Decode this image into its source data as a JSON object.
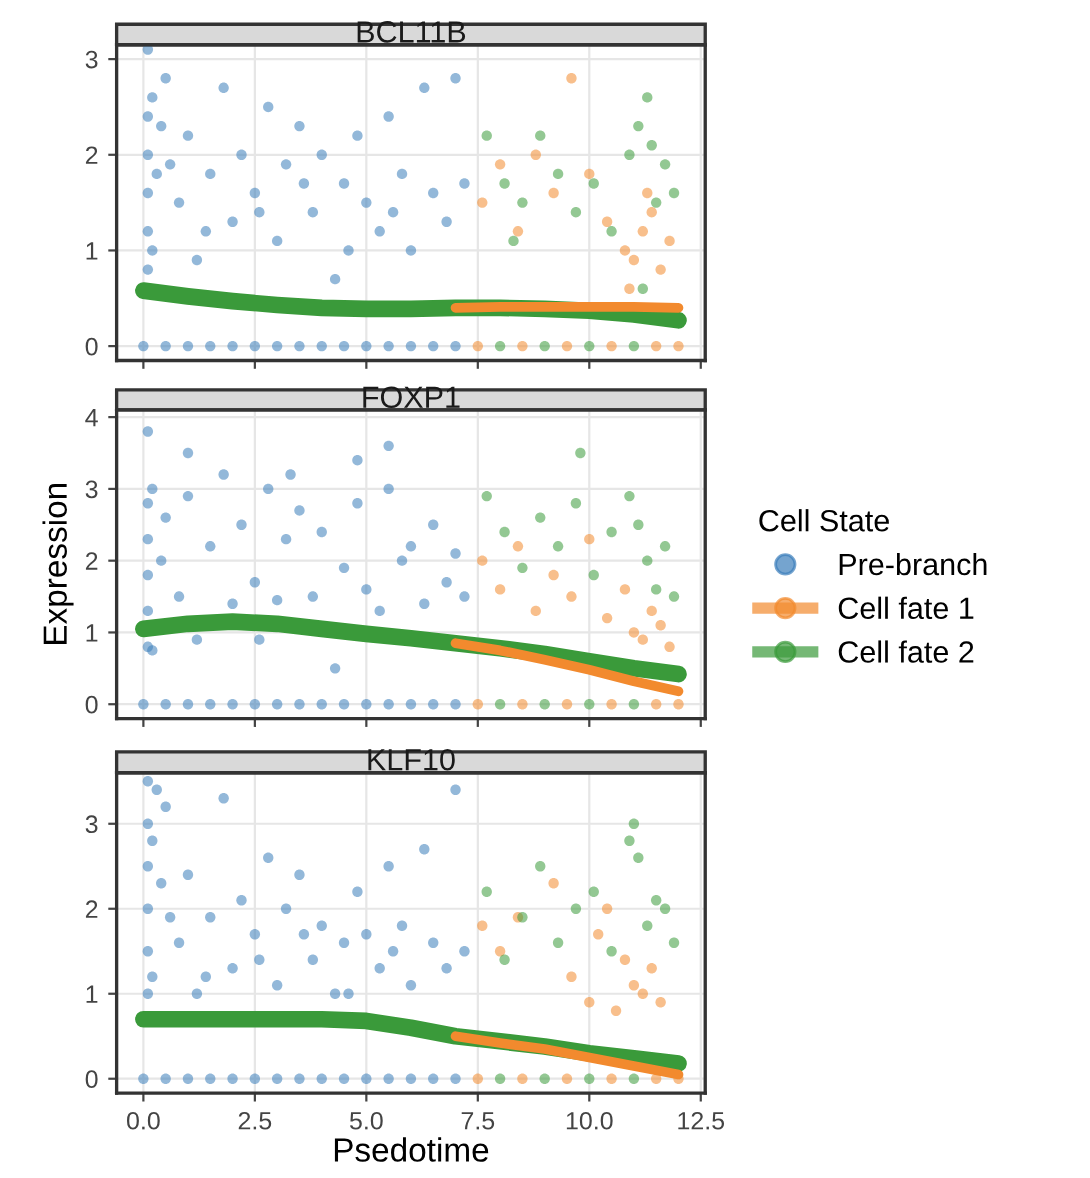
{
  "chart_data": [
    {
      "type": "scatter",
      "title": "BCL11B",
      "legend_title": "Cell State",
      "legend": "right",
      "xlim": [
        -0.6,
        12.6
      ],
      "ylim": [
        -0.15,
        3.15
      ],
      "yticks": [
        0,
        1,
        2,
        3
      ],
      "xticks": [
        {
          "value": 0,
          "label": null
        },
        {
          "value": 2.5,
          "label": null
        },
        {
          "value": 5,
          "label": null
        },
        {
          "value": 7.5,
          "label": null
        },
        {
          "value": 10,
          "label": null
        },
        {
          "value": 12.5,
          "label": null
        }
      ],
      "tick_labels": "y",
      "grid": true,
      "marker": "circle",
      "series": [
        {
          "name": "Pre-branch",
          "color": "#3a7dba",
          "x": [
            0.1,
            0.1,
            0.1,
            0.1,
            0.1,
            0.1,
            0.2,
            0.2,
            0.5,
            0.8,
            1.0,
            1.2,
            1.5,
            1.8,
            2.0,
            2.2,
            2.5,
            2.8,
            3.0,
            3.2,
            3.5,
            3.8,
            4.0,
            4.3,
            4.5,
            4.8,
            5.0,
            5.3,
            5.5,
            5.8,
            6.0,
            6.3,
            6.5,
            6.8,
            7.0,
            7.2,
            0.6,
            1.4,
            2.6,
            3.6,
            4.6,
            5.6,
            0.3,
            0.4,
            0,
            0.5,
            1,
            1.5,
            2,
            2.5,
            3,
            3.5,
            4,
            4.5,
            5,
            5.5,
            6,
            6.5,
            7
          ],
          "values": [
            0.8,
            1.2,
            1.6,
            2.0,
            2.4,
            3.1,
            1.0,
            2.6,
            2.8,
            1.5,
            2.2,
            0.9,
            1.8,
            2.7,
            1.3,
            2.0,
            1.6,
            2.5,
            1.1,
            1.9,
            2.3,
            1.4,
            2.0,
            0.7,
            1.7,
            2.2,
            1.5,
            1.2,
            2.4,
            1.8,
            1.0,
            2.7,
            1.6,
            1.3,
            2.8,
            1.7,
            1.9,
            1.2,
            1.4,
            1.7,
            1.0,
            1.4,
            1.8,
            2.3,
            0,
            0,
            0,
            0,
            0,
            0,
            0,
            0,
            0,
            0,
            0,
            0,
            0,
            0,
            0
          ]
        },
        {
          "name": "Cell fate 1",
          "color": "#f28a2e",
          "x": [
            7.6,
            8.0,
            8.4,
            8.8,
            9.2,
            9.6,
            10.0,
            10.4,
            10.8,
            11.0,
            11.2,
            11.4,
            11.6,
            11.8,
            10.9,
            11.3,
            7.5,
            8.5,
            9.5,
            10.5,
            11.5,
            12.0
          ],
          "values": [
            1.5,
            1.9,
            1.2,
            2.0,
            1.6,
            2.8,
            1.8,
            1.3,
            1.0,
            0.9,
            1.2,
            1.4,
            0.8,
            1.1,
            0.6,
            1.6,
            0,
            0,
            0,
            0,
            0,
            0
          ]
        },
        {
          "name": "Cell fate 2",
          "color": "#3a9a3a",
          "x": [
            7.7,
            8.1,
            8.5,
            8.9,
            9.3,
            9.7,
            10.1,
            10.5,
            10.9,
            11.1,
            11.3,
            11.5,
            11.7,
            11.9,
            11.2,
            11.4,
            8.3,
            8.0,
            9.0,
            10.0,
            11.0
          ],
          "values": [
            2.2,
            1.7,
            1.5,
            2.2,
            1.8,
            1.4,
            1.7,
            1.2,
            2.0,
            2.3,
            2.6,
            1.5,
            1.9,
            1.6,
            0.6,
            2.1,
            1.1,
            0,
            0,
            0,
            0
          ]
        },
        {
          "type": "line",
          "marker": "none",
          "color": "#3a9a3a",
          "x": [
            0,
            1,
            2,
            3,
            4,
            5,
            6,
            7,
            8,
            9,
            10,
            11,
            12
          ],
          "values": [
            0.58,
            0.52,
            0.47,
            0.43,
            0.4,
            0.39,
            0.39,
            0.4,
            0.4,
            0.39,
            0.37,
            0.33,
            0.27
          ]
        },
        {
          "type": "line",
          "marker": "none",
          "color": "#f28a2e",
          "x": [
            7,
            8,
            9,
            10,
            11,
            12
          ],
          "values": [
            0.4,
            0.41,
            0.41,
            0.41,
            0.41,
            0.4
          ]
        }
      ]
    },
    {
      "type": "scatter",
      "title": "FOXP1",
      "ylabel": "Expression",
      "xlim": [
        -0.6,
        12.6
      ],
      "ylim": [
        -0.2,
        4.1
      ],
      "yticks": [
        0,
        1,
        2,
        3,
        4
      ],
      "xticks": [
        {
          "value": 0,
          "label": null
        },
        {
          "value": 2.5,
          "label": null
        },
        {
          "value": 5,
          "label": null
        },
        {
          "value": 7.5,
          "label": null
        },
        {
          "value": 10,
          "label": null
        },
        {
          "value": 12.5,
          "label": null
        }
      ],
      "tick_labels": "y",
      "grid": true,
      "marker": "circle",
      "series": [
        {
          "color": "#3a7dba",
          "x": [
            0.1,
            0.1,
            0.1,
            0.1,
            0.1,
            0.1,
            0.2,
            0.2,
            0.5,
            0.8,
            1.0,
            1.2,
            1.5,
            1.8,
            2.0,
            2.2,
            2.5,
            2.8,
            3.0,
            3.2,
            3.5,
            3.8,
            4.0,
            4.3,
            4.5,
            4.8,
            5.0,
            5.3,
            5.5,
            5.8,
            6.0,
            6.3,
            6.5,
            6.8,
            7.0,
            7.2,
            1.0,
            3.3,
            4.8,
            5.5,
            2.6,
            0.4,
            0,
            0.5,
            1,
            1.5,
            2,
            2.5,
            3,
            3.5,
            4,
            4.5,
            5,
            5.5,
            6,
            6.5,
            7
          ],
          "values": [
            0.8,
            1.3,
            1.8,
            2.3,
            2.8,
            3.8,
            0.75,
            3.0,
            2.6,
            1.5,
            2.9,
            0.9,
            2.2,
            3.2,
            1.4,
            2.5,
            1.7,
            3.0,
            1.45,
            2.3,
            2.7,
            1.5,
            2.4,
            0.5,
            1.9,
            2.8,
            1.6,
            1.3,
            3.0,
            2.0,
            2.2,
            1.4,
            2.5,
            1.7,
            2.1,
            1.5,
            3.5,
            3.2,
            3.4,
            3.6,
            0.9,
            2.0,
            0,
            0,
            0,
            0,
            0,
            0,
            0,
            0,
            0,
            0,
            0,
            0,
            0,
            0,
            0
          ]
        },
        {
          "color": "#f28a2e",
          "x": [
            7.6,
            8.0,
            8.4,
            8.8,
            9.2,
            9.6,
            10.0,
            10.4,
            10.8,
            11.0,
            11.2,
            11.4,
            11.6,
            11.8,
            7.5,
            8.5,
            9.5,
            10.5,
            11.5,
            12.0
          ],
          "values": [
            2.0,
            1.6,
            2.2,
            1.3,
            1.8,
            1.5,
            2.3,
            1.2,
            1.6,
            1.0,
            0.9,
            1.3,
            1.1,
            0.8,
            0,
            0,
            0,
            0,
            0,
            0
          ]
        },
        {
          "color": "#3a9a3a",
          "x": [
            7.7,
            8.1,
            8.5,
            8.9,
            9.3,
            9.7,
            10.1,
            10.5,
            10.9,
            11.1,
            11.3,
            11.5,
            11.7,
            11.9,
            9.8,
            8.0,
            9.0,
            10.0,
            11.0
          ],
          "values": [
            2.9,
            2.4,
            1.9,
            2.6,
            2.2,
            2.8,
            1.8,
            2.4,
            2.9,
            2.5,
            2.0,
            1.6,
            2.2,
            1.5,
            3.5,
            0,
            0,
            0,
            0
          ]
        },
        {
          "type": "line",
          "marker": "none",
          "color": "#3a9a3a",
          "x": [
            0,
            1,
            2,
            3,
            4,
            5,
            6,
            7,
            8,
            9,
            10,
            11,
            12
          ],
          "values": [
            1.05,
            1.12,
            1.15,
            1.12,
            1.05,
            0.98,
            0.92,
            0.85,
            0.78,
            0.7,
            0.6,
            0.5,
            0.42
          ]
        },
        {
          "type": "line",
          "marker": "none",
          "color": "#f28a2e",
          "x": [
            7,
            8,
            9,
            10,
            11,
            12
          ],
          "values": [
            0.85,
            0.75,
            0.62,
            0.48,
            0.32,
            0.18
          ]
        }
      ]
    },
    {
      "type": "scatter",
      "title": "KLF10",
      "xlabel": "Psedotime",
      "xlim": [
        -0.6,
        12.6
      ],
      "ylim": [
        -0.17,
        3.6
      ],
      "yticks": [
        0,
        1,
        2,
        3
      ],
      "xticks": [
        {
          "value": 0,
          "label": "0.0"
        },
        2.5,
        {
          "value": 5,
          "label": "5.0"
        },
        7.5,
        {
          "value": 10,
          "label": "10.0"
        },
        12.5
      ],
      "grid": true,
      "marker": "circle",
      "series": [
        {
          "color": "#3a7dba",
          "x": [
            0.1,
            0.1,
            0.1,
            0.1,
            0.1,
            0.1,
            0.2,
            0.2,
            0.5,
            0.8,
            1.0,
            1.2,
            1.5,
            1.8,
            2.0,
            2.2,
            2.5,
            2.8,
            3.0,
            3.2,
            3.5,
            3.8,
            4.0,
            4.3,
            4.5,
            4.8,
            5.0,
            5.3,
            5.5,
            5.8,
            6.0,
            6.3,
            6.5,
            6.8,
            7.0,
            7.2,
            0.6,
            1.4,
            2.6,
            3.6,
            4.6,
            5.6,
            0.3,
            0.4,
            0,
            0.5,
            1,
            1.5,
            2,
            2.5,
            3,
            3.5,
            4,
            4.5,
            5,
            5.5,
            6,
            6.5,
            7
          ],
          "values": [
            1.0,
            1.5,
            2.0,
            2.5,
            3.0,
            3.5,
            1.2,
            2.8,
            3.2,
            1.6,
            2.4,
            1.0,
            1.9,
            3.3,
            1.3,
            2.1,
            1.7,
            2.6,
            1.1,
            2.0,
            2.4,
            1.4,
            1.8,
            1.0,
            1.6,
            2.2,
            1.7,
            1.3,
            2.5,
            1.8,
            1.1,
            2.7,
            1.6,
            1.3,
            3.4,
            1.5,
            1.9,
            1.2,
            1.4,
            1.7,
            1.0,
            1.5,
            3.4,
            2.3,
            0,
            0,
            0,
            0,
            0,
            0,
            0,
            0,
            0,
            0,
            0,
            0,
            0,
            0,
            0
          ]
        },
        {
          "color": "#f28a2e",
          "x": [
            7.6,
            8.0,
            8.4,
            9.2,
            9.6,
            10.0,
            10.2,
            10.4,
            10.6,
            10.8,
            11.0,
            11.2,
            11.4,
            11.6,
            7.5,
            8.5,
            9.5,
            10.5,
            11.5,
            12.0
          ],
          "values": [
            1.8,
            1.5,
            1.9,
            2.3,
            1.2,
            0.9,
            1.7,
            2.0,
            0.8,
            1.4,
            1.1,
            1.0,
            1.3,
            0.9,
            0,
            0,
            0,
            0,
            0,
            0
          ]
        },
        {
          "color": "#3a9a3a",
          "x": [
            7.7,
            8.1,
            8.5,
            8.9,
            9.3,
            9.7,
            10.1,
            10.5,
            10.9,
            11.1,
            11.3,
            11.5,
            11.7,
            11.9,
            11.0,
            8.0,
            9.0,
            10.0,
            11.0
          ],
          "values": [
            2.2,
            1.4,
            1.9,
            2.5,
            1.6,
            2.0,
            2.2,
            1.5,
            2.8,
            2.6,
            1.8,
            2.1,
            2.0,
            1.6,
            3.0,
            0,
            0,
            0,
            0
          ]
        },
        {
          "type": "line",
          "marker": "none",
          "color": "#3a9a3a",
          "x": [
            0,
            1,
            2,
            3,
            4,
            5,
            6,
            7,
            8,
            9,
            10,
            11,
            12
          ],
          "values": [
            0.7,
            0.7,
            0.7,
            0.7,
            0.7,
            0.68,
            0.6,
            0.5,
            0.44,
            0.38,
            0.3,
            0.24,
            0.18
          ]
        },
        {
          "type": "line",
          "marker": "none",
          "color": "#f28a2e",
          "x": [
            7,
            8,
            9,
            10,
            11,
            12
          ],
          "values": [
            0.5,
            0.42,
            0.35,
            0.25,
            0.15,
            0.05
          ]
        }
      ]
    }
  ]
}
